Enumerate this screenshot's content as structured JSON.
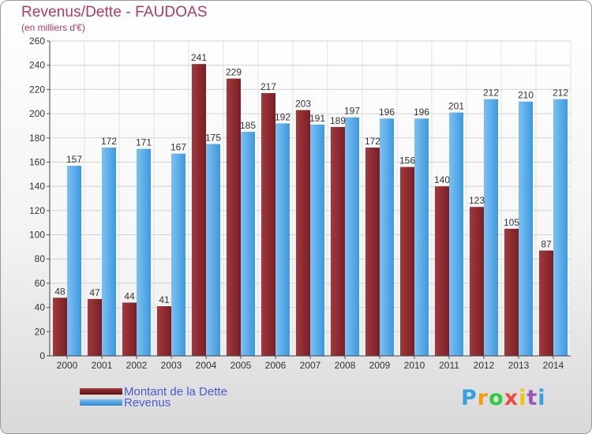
{
  "chart_data": {
    "type": "bar",
    "title": "Revenus/Dette - FAUDOAS",
    "subtitle": "(en milliers d'€)",
    "categories": [
      "2000",
      "2001",
      "2002",
      "2003",
      "2004",
      "2005",
      "2006",
      "2007",
      "2008",
      "2009",
      "2010",
      "2011",
      "2012",
      "2013",
      "2014"
    ],
    "series": [
      {
        "name": "Montant de la Dette",
        "values": [
          48,
          47,
          44,
          41,
          241,
          229,
          217,
          203,
          189,
          172,
          156,
          140,
          123,
          105,
          87
        ]
      },
      {
        "name": "Revenus",
        "values": [
          157,
          172,
          171,
          167,
          175,
          185,
          192,
          191,
          197,
          196,
          196,
          201,
          212,
          210,
          212
        ]
      }
    ],
    "ylim": [
      0,
      260
    ],
    "yticks": [
      0,
      20,
      40,
      60,
      80,
      100,
      120,
      140,
      160,
      180,
      200,
      220,
      240,
      260
    ],
    "grid": true,
    "legend_position": "bottom-left"
  },
  "colors": {
    "debt": "#7a1e22",
    "debt_light": "#a03a3e",
    "revenue": "#3d99e0",
    "revenue_light": "#7cc0f2",
    "title": "#b03a62",
    "legend_text": "#4a5ad8"
  },
  "legend": {
    "debt_label": "Montant de la Dette",
    "revenue_label": "Revenus"
  },
  "logo": {
    "letters": [
      "P",
      "r",
      "o",
      "x",
      "i",
      "t",
      "i"
    ],
    "colors": [
      "#39a0e0",
      "#f39c12",
      "#2ecc40",
      "#e74c3c",
      "#f1c40f",
      "#9b59b6",
      "#39a0e0"
    ]
  }
}
